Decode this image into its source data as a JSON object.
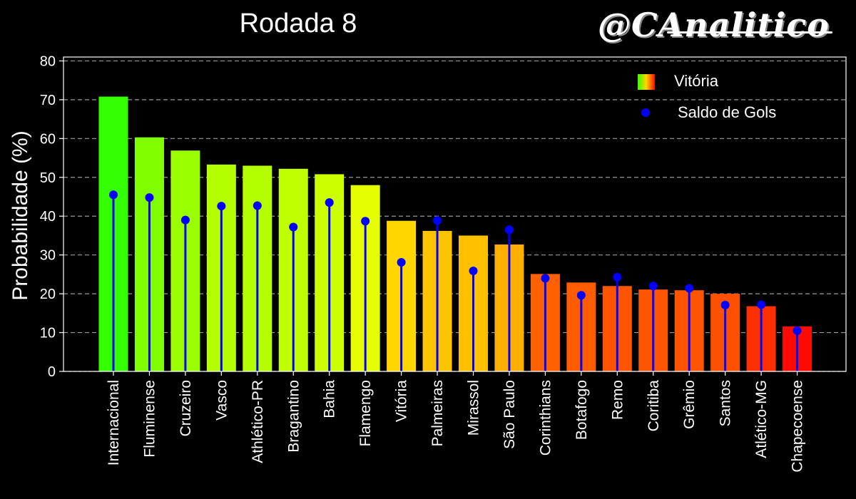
{
  "brand": "@CAnalitico",
  "chart_data": {
    "type": "bar",
    "title": "Rodada 8",
    "xlabel": "",
    "ylabel": "Probabilidade (%)",
    "ylim": [
      0,
      81
    ],
    "yticks": [
      0,
      10,
      20,
      30,
      40,
      50,
      60,
      70,
      80
    ],
    "grid": "horizontal dashed",
    "legend_position": "top-right",
    "categories": [
      "Internacional",
      "Fluminense",
      "Cruzeiro",
      "Vasco",
      "Athlético-PR",
      "Bragantino",
      "Bahia",
      "Flamengo",
      "Vitória",
      "Palmeiras",
      "Mirassol",
      "São Paulo",
      "Corinthians",
      "Botafogo",
      "Remo",
      "Coritiba",
      "Grêmio",
      "Santos",
      "Atlético-MG",
      "Chapecoense"
    ],
    "series": [
      {
        "name": "Vitória",
        "type": "bar",
        "values": [
          70.8,
          60.3,
          56.9,
          53.3,
          53.0,
          52.2,
          50.8,
          48.0,
          38.8,
          36.2,
          35.0,
          32.7,
          25.1,
          22.9,
          22.0,
          21.1,
          20.9,
          20.0,
          16.8,
          11.6
        ],
        "colors": [
          "#33ff00",
          "#80ff00",
          "#99ff00",
          "#b3ff00",
          "#b3ff00",
          "#bfff00",
          "#ccff00",
          "#e6ff00",
          "#ffd700",
          "#ffc400",
          "#ffc000",
          "#ffb000",
          "#ff6000",
          "#ff5c00",
          "#ff5500",
          "#ff5500",
          "#ff5500",
          "#ff5000",
          "#ff3000",
          "#ff0a00"
        ]
      },
      {
        "name": "Saldo de Gols",
        "type": "lollipop",
        "color": "#0000ff",
        "values": [
          45.5,
          44.8,
          39.0,
          42.6,
          42.7,
          37.2,
          43.5,
          38.7,
          28.1,
          38.9,
          25.9,
          36.5,
          24.0,
          19.6,
          24.3,
          22.0,
          21.4,
          17.1,
          17.2,
          10.5
        ]
      }
    ]
  }
}
